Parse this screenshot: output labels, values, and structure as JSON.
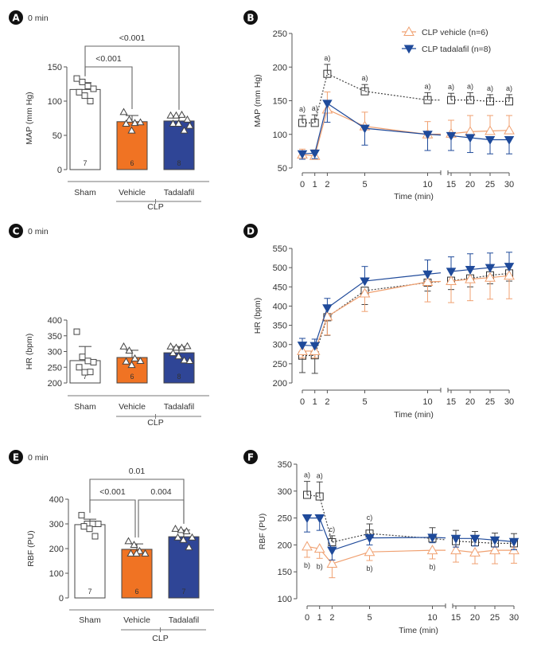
{
  "colors": {
    "sham": "#ffffff",
    "vehicle": "#f07323",
    "tadalafil": "#2f4596",
    "vehicle_line": "#f0a070",
    "tadalafil_line": "#1f4a9a",
    "sham_line": "#444444",
    "axis": "#555555"
  },
  "legend": [
    {
      "name": "CLP vehicle (n=6)",
      "marker": "open-triangle-up",
      "color": "#f0a070"
    },
    {
      "name": "CLP tadalafil (n=8)",
      "marker": "filled-triangle-down",
      "color": "#1f4a9a"
    }
  ],
  "chart_data": [
    {
      "panel": "A",
      "type": "bar",
      "subtitle": "0 min",
      "ylabel": "MAP (mm Hg)",
      "ylim": [
        0,
        150
      ],
      "yticks": [
        0,
        50,
        100,
        150
      ],
      "categories": [
        "Sham",
        "Vehicle",
        "Tadalafil"
      ],
      "group_label": "CLP",
      "values": [
        117,
        70,
        71
      ],
      "errors": [
        10,
        9,
        7
      ],
      "n": [
        "7",
        "6",
        "8"
      ],
      "points": [
        [
          133,
          128,
          122,
          118,
          113,
          108,
          100
        ],
        [
          84,
          73,
          68,
          69,
          67,
          57
        ],
        [
          79,
          79,
          80,
          73,
          67,
          67,
          57,
          64
        ]
      ],
      "comparisons": [
        {
          "from": 0,
          "to": 1,
          "label": "<0.001"
        },
        {
          "from": 0,
          "to": 2,
          "label": "<0.001"
        }
      ]
    },
    {
      "panel": "B",
      "type": "line",
      "ylabel": "MAP (mm Hg)",
      "xlabel": "Time (min)",
      "ylim": [
        50,
        250
      ],
      "yticks": [
        50,
        100,
        150,
        200,
        250
      ],
      "x": [
        0,
        1,
        2,
        5,
        10,
        15,
        20,
        25,
        30
      ],
      "series": [
        {
          "name": "Sham",
          "values": [
            117,
            117,
            190,
            164,
            151,
            151,
            151,
            149,
            149
          ],
          "errors": [
            11,
            12,
            14,
            10,
            11,
            10,
            11,
            10,
            10
          ],
          "annotations": [
            "a)",
            "a)",
            "a)",
            "a)",
            "a)",
            "a)",
            "a)",
            "a)",
            "a)"
          ]
        },
        {
          "name": "CLP vehicle (n=6)",
          "values": [
            70,
            68,
            137,
            112,
            100,
            101,
            104,
            105,
            106
          ],
          "errors": [
            8,
            9,
            26,
            21,
            19,
            20,
            24,
            23,
            22
          ]
        },
        {
          "name": "CLP tadalafil (n=8)",
          "values": [
            71,
            72,
            146,
            109,
            100,
            98,
            95,
            92,
            92
          ],
          "errors": [
            8,
            8,
            28,
            25,
            24,
            22,
            22,
            21,
            21
          ]
        }
      ]
    },
    {
      "panel": "C",
      "type": "bar",
      "subtitle": "0 min",
      "ylabel": "HR (bpm)",
      "ylim": [
        200,
        400
      ],
      "yticks": [
        200,
        250,
        300,
        350,
        400
      ],
      "categories": [
        "Sham",
        "Vehicle",
        "Tadalafil"
      ],
      "group_label": "CLP",
      "values": [
        271,
        281,
        296
      ],
      "errors": [
        45,
        23,
        20
      ],
      "n": [
        "7",
        "6",
        "8"
      ],
      "points": [
        [
          363,
          283,
          270,
          266,
          250,
          234,
          235
        ],
        [
          316,
          303,
          278,
          270,
          268,
          257
        ],
        [
          316,
          312,
          312,
          317,
          295,
          285,
          272,
          270
        ]
      ],
      "comparisons": []
    },
    {
      "panel": "D",
      "type": "line",
      "ylabel": "HR (bpm)",
      "xlabel": "Time (min)",
      "ylim": [
        200,
        550
      ],
      "yticks": [
        200,
        250,
        300,
        350,
        400,
        450,
        500,
        550
      ],
      "x": [
        0,
        1,
        2,
        5,
        10,
        15,
        20,
        25,
        30
      ],
      "series": [
        {
          "name": "Sham",
          "values": [
            271,
            272,
            371,
            440,
            461,
            466,
            472,
            480,
            485
          ],
          "errors": [
            44,
            47,
            47,
            36,
            22,
            23,
            22,
            22,
            20
          ]
        },
        {
          "name": "CLP vehicle (n=6)",
          "values": [
            283,
            283,
            373,
            433,
            463,
            465,
            470,
            474,
            479
          ],
          "errors": [
            18,
            18,
            48,
            47,
            52,
            56,
            56,
            56,
            60
          ]
        },
        {
          "name": "CLP tadalafil (n=8)",
          "values": [
            298,
            297,
            395,
            465,
            483,
            490,
            495,
            500,
            503
          ],
          "errors": [
            18,
            17,
            25,
            38,
            37,
            38,
            41,
            38,
            37
          ]
        }
      ]
    },
    {
      "panel": "E",
      "type": "bar",
      "subtitle": "0 min",
      "ylabel": "RBF (PU)",
      "ylim": [
        0,
        400
      ],
      "yticks": [
        0,
        100,
        200,
        300,
        400
      ],
      "categories": [
        "Sham",
        "Vehicle",
        "Tadalafil"
      ],
      "group_label": "CLP",
      "values": [
        297,
        197,
        248
      ],
      "errors": [
        22,
        22,
        27
      ],
      "n": [
        "7",
        "6",
        "7"
      ],
      "points": [
        [
          335,
          300,
          300,
          300,
          290,
          280,
          250
        ],
        [
          230,
          215,
          190,
          180,
          180,
          180
        ],
        [
          280,
          275,
          270,
          245,
          245,
          235,
          205
        ]
      ],
      "comparisons": [
        {
          "from": 0,
          "to": 1,
          "label": "<0.001"
        },
        {
          "from": 1,
          "to": 2,
          "label": "0.004"
        },
        {
          "from": 0,
          "to": 2,
          "label": "0.01"
        }
      ]
    },
    {
      "panel": "F",
      "type": "line",
      "ylabel": "RBF (PU)",
      "xlabel": "Time (min)",
      "ylim": [
        100,
        350
      ],
      "yticks": [
        100,
        150,
        200,
        250,
        300,
        350
      ],
      "x": [
        0,
        1,
        2,
        5,
        10,
        15,
        20,
        25,
        30
      ],
      "series": [
        {
          "name": "Sham",
          "values": [
            293,
            290,
            205,
            221,
            212,
            207,
            205,
            203,
            203
          ],
          "errors": [
            25,
            27,
            12,
            18,
            20,
            20,
            20,
            19,
            18
          ],
          "annotations": [
            "a)",
            "a)",
            "c)",
            "c)",
            "",
            "",
            "",
            "",
            ""
          ]
        },
        {
          "name": "CLP vehicle (n=6)",
          "values": [
            197,
            193,
            165,
            187,
            190,
            190,
            186,
            190,
            190
          ],
          "errors": [
            20,
            18,
            26,
            16,
            16,
            22,
            21,
            25,
            24
          ],
          "annotations": [
            "b)",
            "b)",
            "",
            "b)",
            "b)",
            "",
            "",
            "",
            ""
          ]
        },
        {
          "name": "CLP tadalafil (n=8)",
          "values": [
            250,
            250,
            190,
            213,
            214,
            212,
            212,
            209,
            206
          ],
          "errors": [
            26,
            23,
            18,
            13,
            10,
            16,
            14,
            13,
            15
          ]
        }
      ]
    }
  ],
  "panels": [
    {
      "letter": "A",
      "subtitle": "0 min"
    },
    {
      "letter": "B",
      "subtitle": ""
    },
    {
      "letter": "C",
      "subtitle": "0 min"
    },
    {
      "letter": "D",
      "subtitle": ""
    },
    {
      "letter": "E",
      "subtitle": "0 min"
    },
    {
      "letter": "F",
      "subtitle": ""
    }
  ]
}
